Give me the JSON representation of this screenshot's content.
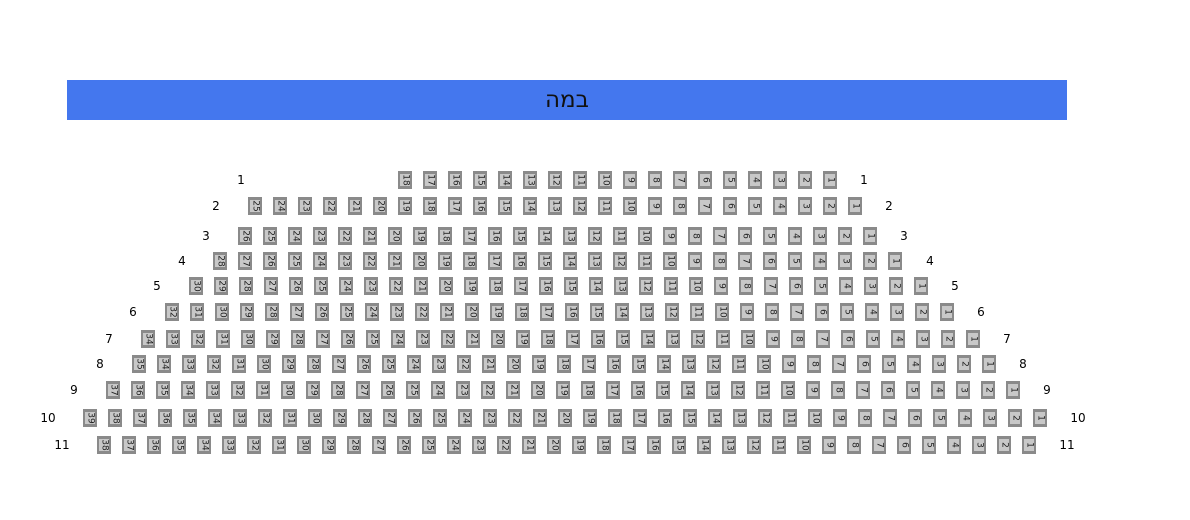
{
  "stage": {
    "label": "במה",
    "color": "#4477ee"
  },
  "seat_color": "#8a8a8a",
  "rows": [
    {
      "label": "1",
      "seats": [
        18,
        17,
        16,
        15,
        14,
        13,
        12,
        11,
        10,
        9,
        8,
        7,
        6,
        5,
        4,
        3,
        2,
        1
      ]
    },
    {
      "label": "2",
      "seats": [
        25,
        24,
        23,
        22,
        21,
        20,
        19,
        18,
        17,
        16,
        15,
        14,
        13,
        12,
        11,
        10,
        9,
        8,
        7,
        6,
        5,
        4,
        3,
        2,
        1
      ]
    },
    {
      "label": "3",
      "seats": [
        26,
        25,
        24,
        23,
        22,
        21,
        20,
        19,
        18,
        17,
        16,
        15,
        14,
        13,
        12,
        11,
        10,
        9,
        8,
        7,
        6,
        5,
        4,
        3,
        2,
        1
      ]
    },
    {
      "label": "4",
      "seats": [
        28,
        27,
        26,
        25,
        24,
        23,
        22,
        21,
        20,
        19,
        18,
        17,
        16,
        15,
        14,
        13,
        12,
        11,
        10,
        9,
        8,
        7,
        6,
        5,
        4,
        3,
        2,
        1
      ]
    },
    {
      "label": "5",
      "seats": [
        30,
        29,
        28,
        27,
        26,
        25,
        24,
        23,
        22,
        21,
        20,
        19,
        18,
        17,
        16,
        15,
        14,
        13,
        12,
        11,
        10,
        9,
        8,
        7,
        6,
        5,
        4,
        3,
        2,
        1
      ]
    },
    {
      "label": "6",
      "seats": [
        32,
        31,
        30,
        29,
        28,
        27,
        26,
        25,
        24,
        23,
        22,
        21,
        20,
        19,
        18,
        17,
        16,
        15,
        14,
        13,
        12,
        11,
        10,
        9,
        8,
        7,
        6,
        5,
        4,
        3,
        2,
        1
      ]
    },
    {
      "label": "7",
      "seats": [
        34,
        33,
        32,
        31,
        30,
        29,
        28,
        27,
        26,
        25,
        24,
        23,
        22,
        21,
        20,
        19,
        18,
        17,
        16,
        15,
        14,
        13,
        12,
        11,
        10,
        9,
        8,
        7,
        6,
        5,
        4,
        3,
        2,
        1
      ]
    },
    {
      "label": "8",
      "seats": [
        35,
        34,
        33,
        32,
        31,
        30,
        29,
        28,
        27,
        26,
        25,
        24,
        23,
        22,
        21,
        20,
        19,
        18,
        17,
        16,
        15,
        14,
        13,
        12,
        11,
        10,
        9,
        8,
        7,
        6,
        5,
        4,
        3,
        2,
        1
      ]
    },
    {
      "label": "9",
      "seats": [
        37,
        36,
        35,
        34,
        33,
        32,
        31,
        30,
        29,
        28,
        27,
        26,
        25,
        24,
        23,
        22,
        21,
        20,
        19,
        18,
        17,
        16,
        15,
        14,
        13,
        12,
        11,
        10,
        9,
        8,
        7,
        6,
        5,
        4,
        3,
        2,
        1
      ]
    },
    {
      "label": "10",
      "seats": [
        39,
        38,
        37,
        36,
        35,
        34,
        33,
        32,
        31,
        30,
        29,
        28,
        27,
        26,
        25,
        24,
        23,
        22,
        21,
        20,
        19,
        18,
        17,
        16,
        15,
        14,
        13,
        12,
        11,
        10,
        9,
        8,
        7,
        6,
        5,
        4,
        3,
        2,
        1
      ]
    },
    {
      "label": "11",
      "seats": [
        38,
        37,
        36,
        35,
        34,
        33,
        32,
        31,
        30,
        29,
        28,
        27,
        26,
        25,
        24,
        23,
        22,
        21,
        20,
        19,
        18,
        17,
        16,
        15,
        14,
        13,
        12,
        11,
        10,
        9,
        8,
        7,
        6,
        5,
        4,
        3,
        2,
        1
      ]
    }
  ]
}
